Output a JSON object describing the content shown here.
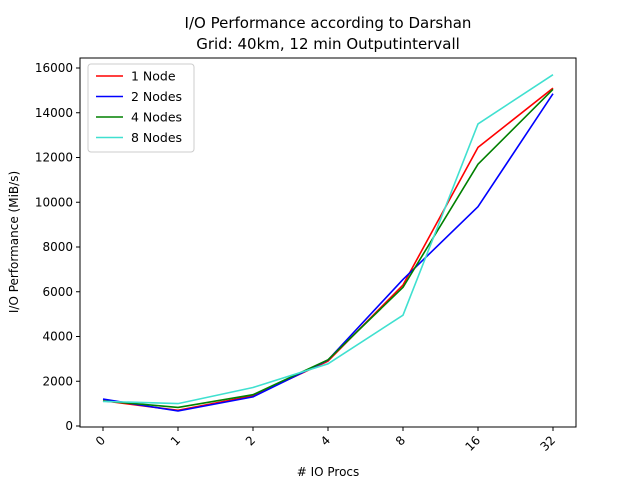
{
  "chart_data": {
    "type": "line",
    "title": "I/O Performance according to Darshan",
    "subtitle": "Grid: 40km, 12 min Outputintervall",
    "xlabel": "# IO Procs",
    "ylabel": "I/O Performance (MiB/s)",
    "categories": [
      "0",
      "1",
      "2",
      "4",
      "8",
      "16",
      "32"
    ],
    "ylim": [
      0,
      16000
    ],
    "yticks": [
      0,
      2000,
      4000,
      6000,
      8000,
      10000,
      12000,
      14000,
      16000
    ],
    "grid": false,
    "legend_position": "top-left",
    "series": [
      {
        "name": "1 Node",
        "color": "#ff0000",
        "values": [
          1130,
          700,
          1350,
          2900,
          6300,
          12450,
          15100
        ]
      },
      {
        "name": "2 Nodes",
        "color": "#0000ff",
        "values": [
          1200,
          670,
          1300,
          2950,
          6550,
          9800,
          14850
        ]
      },
      {
        "name": "4 Nodes",
        "color": "#008000",
        "values": [
          1120,
          830,
          1400,
          2960,
          6200,
          11700,
          15050
        ]
      },
      {
        "name": "8 Nodes",
        "color": "#40e0d0",
        "values": [
          1100,
          1000,
          1720,
          2780,
          4950,
          13500,
          15700
        ]
      }
    ]
  }
}
